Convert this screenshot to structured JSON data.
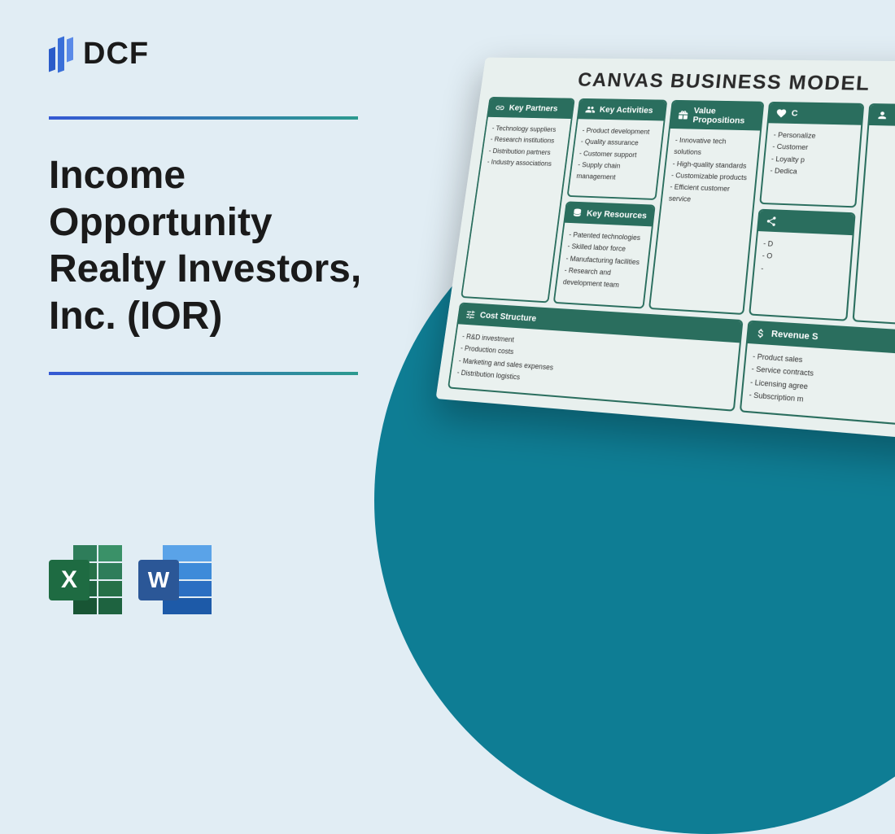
{
  "logo": {
    "text": "DCF"
  },
  "title": "Income Opportunity Realty Investors, Inc. (IOR)",
  "file_icons": {
    "excel_letter": "X",
    "word_letter": "W"
  },
  "colors": {
    "page_bg": "#e1edf4",
    "circle_bg": "#0e7d94",
    "divider_start": "#3559d4",
    "divider_end": "#2c9a8f",
    "canvas_header": "#2a6e5e",
    "canvas_cell_bg": "#eaf1ef"
  },
  "canvas": {
    "title": "CANVAS BUSINESS MODEL",
    "key_partners": {
      "label": "Key Partners",
      "items": [
        "Technology suppliers",
        "Research institutions",
        "Distribution partners",
        "Industry associations"
      ]
    },
    "key_activities": {
      "label": "Key Activities",
      "items": [
        "Product development",
        "Quality assurance",
        "Customer support",
        "Supply chain management"
      ]
    },
    "key_resources": {
      "label": "Key Resources",
      "items": [
        "Patented technologies",
        "Skilled labor force",
        "Manufacturing facilities",
        "Research and development team"
      ]
    },
    "value_propositions": {
      "label": "Value Propositions",
      "items": [
        "Innovative tech solutions",
        "High-quality standards",
        "Customizable products",
        "Efficient customer service"
      ]
    },
    "customer_relationships": {
      "label": "C",
      "items": [
        "Personalize",
        "Customer",
        "Loyalty p",
        "Dedica"
      ]
    },
    "channels": {
      "label": "",
      "items": [
        "D",
        "O",
        ""
      ]
    },
    "customer_segments": {
      "label": "",
      "items": []
    },
    "cost_structure": {
      "label": "Cost Structure",
      "items": [
        "R&D investment",
        "Production costs",
        "Marketing and sales expenses",
        "Distribution logistics"
      ]
    },
    "revenue_streams": {
      "label": "Revenue S",
      "items": [
        "Product sales",
        "Service contracts",
        "Licensing agree",
        "Subscription m"
      ]
    }
  }
}
